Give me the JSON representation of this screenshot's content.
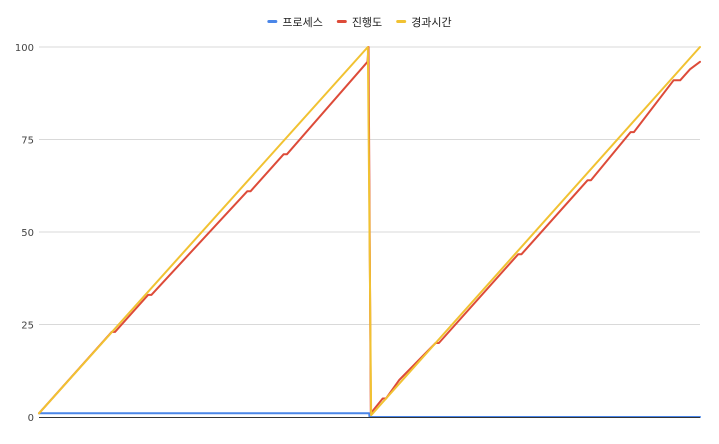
{
  "chart_data": {
    "type": "line",
    "title": "",
    "xlabel": "",
    "ylabel": "",
    "ylim": [
      0,
      100
    ],
    "yticks": [
      0,
      25,
      50,
      75,
      100
    ],
    "legend_position": "top-center",
    "grid": true,
    "x": [
      0,
      0.2,
      0.4,
      0.6,
      0.8,
      1.0,
      1.2,
      1.4,
      1.6,
      1.8,
      2.0
    ],
    "series": [
      {
        "name": "프로세스",
        "color": "#4a86e8",
        "points": [
          [
            0,
            1
          ],
          [
            0.999,
            1
          ],
          [
            1.0,
            0
          ],
          [
            2.0,
            0
          ]
        ]
      },
      {
        "name": "진행도",
        "color": "#dd4b39",
        "points": [
          [
            0,
            1
          ],
          [
            0.22,
            23
          ],
          [
            0.23,
            23
          ],
          [
            0.33,
            33
          ],
          [
            0.34,
            33
          ],
          [
            0.63,
            61
          ],
          [
            0.64,
            61
          ],
          [
            0.74,
            71
          ],
          [
            0.75,
            71
          ],
          [
            0.994,
            96
          ],
          [
            0.997,
            100
          ],
          [
            1.004,
            1
          ],
          [
            1.04,
            5
          ],
          [
            1.05,
            5
          ],
          [
            1.09,
            10
          ],
          [
            1.2,
            20
          ],
          [
            1.21,
            20
          ],
          [
            1.45,
            44
          ],
          [
            1.46,
            44
          ],
          [
            1.66,
            64
          ],
          [
            1.67,
            64
          ],
          [
            1.79,
            77
          ],
          [
            1.8,
            77
          ],
          [
            1.92,
            91
          ],
          [
            1.94,
            91
          ],
          [
            1.97,
            94
          ],
          [
            2.0,
            96
          ]
        ]
      },
      {
        "name": "경과시간",
        "color": "#f1c232",
        "points": [
          [
            0,
            1
          ],
          [
            0.995,
            100
          ],
          [
            1.005,
            0.5
          ],
          [
            2.0,
            100
          ]
        ]
      }
    ]
  }
}
